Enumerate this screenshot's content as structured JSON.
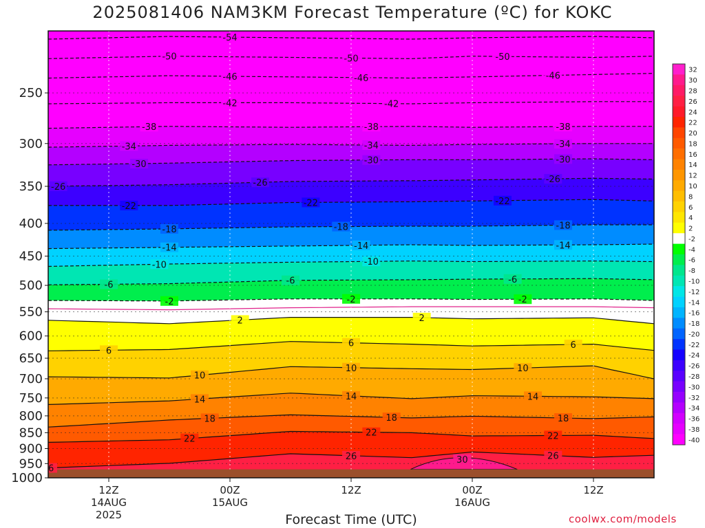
{
  "title": "2025081406 NAM3KM Forecast Temperature (ºC) for KOKC",
  "credit": "coolwx.com/models",
  "chart_data": {
    "type": "contour",
    "variable": "Temperature (ºC)",
    "title": "2025081406 NAM3KM Forecast Temperature (ºC) for KOKC",
    "xlabel": "Forecast Time (UTC)",
    "ylabel": "",
    "y_scale": "log",
    "y_inverted": true,
    "ylim": [
      1000,
      200
    ],
    "xlim": [
      "2025-08-14T06Z",
      "2025-08-16T18Z"
    ],
    "y_ticks": [
      250,
      300,
      350,
      400,
      450,
      500,
      550,
      600,
      650,
      700,
      750,
      800,
      850,
      900,
      950,
      1000
    ],
    "x_ticks": [
      {
        "t": "2025-08-14T12Z",
        "label_lines": [
          "12Z",
          "14AUG",
          "2025"
        ]
      },
      {
        "t": "2025-08-15T00Z",
        "label_lines": [
          "00Z",
          "15AUG"
        ]
      },
      {
        "t": "2025-08-15T12Z",
        "label_lines": [
          "12Z"
        ]
      },
      {
        "t": "2025-08-16T00Z",
        "label_lines": [
          "00Z",
          "16AUG"
        ]
      },
      {
        "t": "2025-08-16T12Z",
        "label_lines": [
          "12Z"
        ]
      }
    ],
    "surface_pressure": 970,
    "colorbar_levels": [
      32,
      30,
      28,
      26,
      24,
      22,
      20,
      18,
      16,
      14,
      12,
      10,
      8,
      6,
      4,
      2,
      -2,
      -4,
      -6,
      -8,
      -10,
      -12,
      -14,
      -16,
      -18,
      -20,
      -22,
      -24,
      -26,
      -28,
      -30,
      -32,
      -34,
      -36,
      -38,
      -40
    ],
    "colorbar_colors": [
      "#ff1ecc",
      "#ff1a8c",
      "#ff1a66",
      "#ff1f44",
      "#ff1a2a",
      "#ff2400",
      "#ff4500",
      "#ff5a00",
      "#ff6e00",
      "#ff8200",
      "#ff9600",
      "#ffaa00",
      "#ffbe00",
      "#ffd200",
      "#ffe600",
      "#ffff00",
      "#ffffff",
      "#00ff00",
      "#00ee4d",
      "#00e68c",
      "#00e6b3",
      "#00e6e6",
      "#00d2ff",
      "#00b4ff",
      "#008cff",
      "#0064ff",
      "#0033ff",
      "#1400ff",
      "#3c00ff",
      "#5a00ff",
      "#7800ff",
      "#9600ff",
      "#b400ff",
      "#d200ff",
      "#e600ff",
      "#ff00ff"
    ],
    "contour_lines": [
      {
        "value": -54,
        "label": "-54",
        "label_x": [
          "2025-08-15T00Z"
        ],
        "pressure": [
          206,
          204,
          205,
          206,
          205,
          204,
          205
        ]
      },
      {
        "value": -50,
        "label": "-50",
        "label_x": [
          "2025-08-14T18Z",
          "2025-08-15T12Z",
          "2025-08-16T03Z"
        ],
        "pressure": [
          221,
          219,
          220,
          221,
          219,
          220,
          219
        ]
      },
      {
        "value": -46,
        "label": "-46",
        "label_x": [
          "2025-08-15T00Z",
          "2025-08-15T13Z",
          "2025-08-16T08Z"
        ],
        "pressure": [
          237,
          235,
          236,
          237,
          236,
          234,
          233
        ]
      },
      {
        "value": -42,
        "label": "-42",
        "label_x": [
          "2025-08-15T00Z",
          "2025-08-15T16Z"
        ],
        "pressure": [
          260,
          259,
          259,
          260,
          259,
          258,
          258
        ]
      },
      {
        "value": -38,
        "label": "-38",
        "label_x": [
          "2025-08-14T16Z",
          "2025-08-15T14Z",
          "2025-08-16T09Z"
        ],
        "pressure": [
          284,
          282,
          283,
          282,
          283,
          282,
          282
        ]
      },
      {
        "value": -34,
        "label": "-34",
        "label_x": [
          "2025-08-14T14Z",
          "2025-08-15T14Z",
          "2025-08-16T09Z"
        ],
        "pressure": [
          304,
          302,
          301,
          302,
          301,
          300,
          300
        ]
      },
      {
        "value": -30,
        "label": "-30",
        "label_x": [
          "2025-08-14T15Z",
          "2025-08-15T14Z",
          "2025-08-16T09Z"
        ],
        "pressure": [
          324,
          322,
          319,
          318,
          318,
          317,
          318
        ]
      },
      {
        "value": -26,
        "label": "-26",
        "label_x": [
          "2025-08-14T07Z",
          "2025-08-15T03Z",
          "2025-08-16T08Z"
        ],
        "pressure": [
          350,
          348,
          344,
          343,
          342,
          340,
          341
        ]
      },
      {
        "value": -22,
        "label": "-22",
        "label_x": [
          "2025-08-14T14Z",
          "2025-08-15T08Z",
          "2025-08-16T03Z"
        ],
        "pressure": [
          375,
          375,
          371,
          370,
          369,
          367,
          369
        ]
      },
      {
        "value": -18,
        "label": "-18",
        "label_x": [
          "2025-08-14T18Z",
          "2025-08-15T11Z",
          "2025-08-16T09Z"
        ],
        "pressure": [
          410,
          408,
          405,
          404,
          404,
          402,
          402
        ]
      },
      {
        "value": -14,
        "label": "-14",
        "label_x": [
          "2025-08-14T18Z",
          "2025-08-15T13Z",
          "2025-08-16T09Z"
        ],
        "pressure": [
          438,
          436,
          434,
          432,
          433,
          432,
          431
        ]
      },
      {
        "value": -10,
        "label": "-10",
        "label_x": [
          "2025-08-14T17Z",
          "2025-08-15T14Z"
        ],
        "pressure": [
          467,
          463,
          460,
          458,
          459,
          458,
          459
        ]
      },
      {
        "value": -6,
        "label": "-6",
        "label_x": [
          "2025-08-14T12Z",
          "2025-08-15T06Z",
          "2025-08-16T04Z"
        ],
        "pressure": [
          499,
          497,
          491,
          490,
          489,
          488,
          490
        ]
      },
      {
        "value": -2,
        "label": "-2",
        "label_x": [
          "2025-08-14T18Z",
          "2025-08-15T12Z",
          "2025-08-16T05Z"
        ],
        "pressure": [
          528,
          529,
          525,
          525,
          526,
          525,
          528
        ]
      },
      {
        "value": 0,
        "label": "",
        "label_x": [],
        "pressure": [
          544,
          546,
          542,
          540,
          540,
          540,
          542
        ]
      },
      {
        "value": 2,
        "label": "2",
        "label_x": [
          "2025-08-15T01Z",
          "2025-08-15T19Z"
        ],
        "pressure": [
          567,
          574,
          561,
          561,
          564,
          562,
          574
        ]
      },
      {
        "value": 6,
        "label": "6",
        "label_x": [
          "2025-08-14T12Z",
          "2025-08-15T12Z",
          "2025-08-16T10Z"
        ],
        "pressure": [
          633,
          630,
          612,
          618,
          622,
          618,
          632
        ]
      },
      {
        "value": 10,
        "label": "10",
        "label_x": [
          "2025-08-14T21Z",
          "2025-08-15T12Z",
          "2025-08-16T05Z"
        ],
        "pressure": [
          695,
          698,
          670,
          675,
          677,
          668,
          700
        ]
      },
      {
        "value": 14,
        "label": "14",
        "label_x": [
          "2025-08-14T21Z",
          "2025-08-15T12Z",
          "2025-08-16T06Z"
        ],
        "pressure": [
          768,
          758,
          737,
          752,
          744,
          747,
          752
        ]
      },
      {
        "value": 18,
        "label": "18",
        "label_x": [
          "2025-08-14T22Z",
          "2025-08-15T16Z",
          "2025-08-16T09Z"
        ],
        "pressure": [
          833,
          812,
          797,
          806,
          801,
          808,
          803
        ]
      },
      {
        "value": 22,
        "label": "22",
        "label_x": [
          "2025-08-14T20Z",
          "2025-08-15T14Z",
          "2025-08-16T08Z"
        ],
        "pressure": [
          880,
          872,
          846,
          850,
          860,
          858,
          868
        ]
      },
      {
        "value": 26,
        "label": "26",
        "label_x": [
          "2025-08-14T06Z",
          "2025-08-15T12Z",
          "2025-08-16T08Z"
        ],
        "pressure": [
          965,
          949,
          917,
          930,
          911,
          929,
          922
        ]
      },
      {
        "value": 30,
        "label": "30",
        "label_x": [
          "2025-08-15T23Z"
        ],
        "pressure": [
          null,
          null,
          null,
          null,
          940,
          null,
          null
        ]
      }
    ],
    "contour_line_times": [
      "2025-08-14T06Z",
      "2025-08-14T18Z",
      "2025-08-15T06Z",
      "2025-08-15T18Z",
      "2025-08-16T00Z",
      "2025-08-16T12Z",
      "2025-08-16T18Z"
    ],
    "line_style": {
      "below_zero": "dashed black",
      "zero": "magenta",
      "above_zero": "solid black"
    },
    "grid": true
  }
}
